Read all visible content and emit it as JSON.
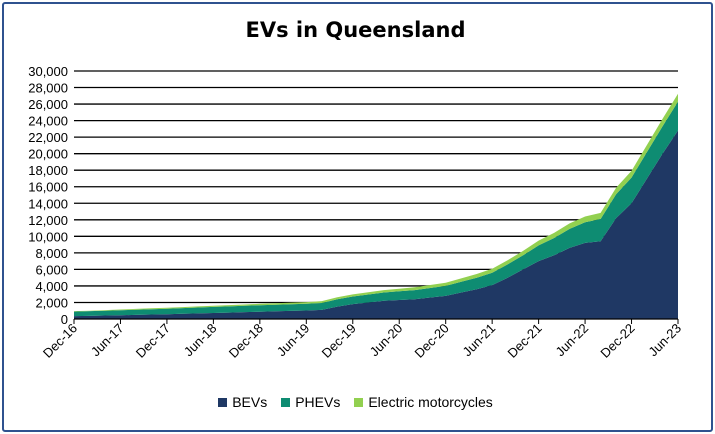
{
  "chart_data": {
    "type": "area",
    "stacked": true,
    "title": "EVs in Queensland",
    "xlabel": "",
    "ylabel": "",
    "ylim": [
      0,
      30000
    ],
    "yticks": [
      "0",
      "2,000",
      "4,000",
      "6,000",
      "8,000",
      "10,000",
      "12,000",
      "14,000",
      "16,000",
      "18,000",
      "20,000",
      "22,000",
      "24,000",
      "26,000",
      "28,000",
      "30,000"
    ],
    "xticks": [
      "Dec-16",
      "Jun-17",
      "Dec-17",
      "Jun-18",
      "Dec-18",
      "Jun-19",
      "Dec-19",
      "Jun-20",
      "Dec-20",
      "Jun-21",
      "Dec-21",
      "Jun-22",
      "Dec-22",
      "Jun-23"
    ],
    "grid": "horizontal",
    "legend_position": "bottom",
    "x": [
      "Dec-16",
      "Feb-17",
      "Apr-17",
      "Jun-17",
      "Aug-17",
      "Oct-17",
      "Dec-17",
      "Feb-18",
      "Apr-18",
      "Jun-18",
      "Aug-18",
      "Oct-18",
      "Dec-18",
      "Feb-19",
      "Apr-19",
      "Jun-19",
      "Aug-19",
      "Oct-19",
      "Dec-19",
      "Feb-20",
      "Apr-20",
      "Jun-20",
      "Aug-20",
      "Oct-20",
      "Dec-20",
      "Feb-21",
      "Apr-21",
      "Jun-21",
      "Aug-21",
      "Oct-21",
      "Dec-21",
      "Feb-22",
      "Apr-22",
      "Jun-22",
      "Aug-22",
      "Oct-22",
      "Dec-22",
      "Feb-23",
      "Apr-23",
      "Jun-23"
    ],
    "series": [
      {
        "name": "BEVs",
        "color": "#1f3864",
        "values": [
          350,
          380,
          420,
          460,
          500,
          540,
          580,
          630,
          680,
          730,
          780,
          830,
          880,
          930,
          980,
          1030,
          1100,
          1500,
          1800,
          2000,
          2200,
          2300,
          2400,
          2600,
          2800,
          3200,
          3600,
          4100,
          5000,
          6000,
          7000,
          7700,
          8600,
          9200,
          9400,
          12200,
          14000,
          17000,
          20000,
          22800
        ]
      },
      {
        "name": "PHEVs",
        "color": "#0e8c72",
        "values": [
          550,
          570,
          590,
          610,
          630,
          650,
          670,
          690,
          710,
          730,
          750,
          770,
          790,
          800,
          810,
          820,
          840,
          880,
          920,
          960,
          1000,
          1050,
          1100,
          1150,
          1200,
          1300,
          1400,
          1500,
          1600,
          1700,
          1900,
          2100,
          2300,
          2500,
          2700,
          2900,
          3100,
          3200,
          3300,
          3500
        ]
      },
      {
        "name": "Electric motorcycles",
        "color": "#92d050",
        "values": [
          50,
          60,
          70,
          80,
          90,
          100,
          110,
          120,
          130,
          140,
          150,
          160,
          170,
          180,
          190,
          200,
          220,
          240,
          260,
          280,
          300,
          320,
          340,
          360,
          380,
          410,
          440,
          470,
          500,
          540,
          580,
          620,
          660,
          700,
          740,
          780,
          820,
          860,
          900,
          950
        ]
      }
    ]
  }
}
